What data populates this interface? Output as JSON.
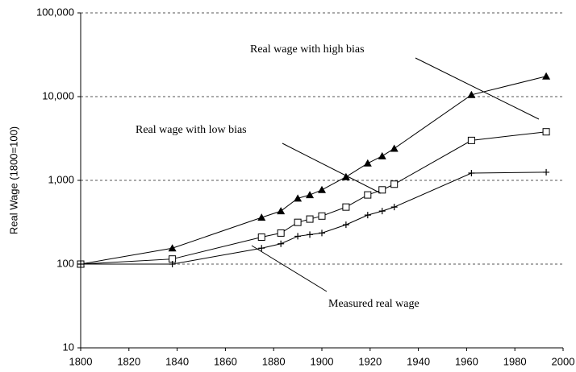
{
  "chart_data": {
    "type": "line",
    "y_label": "Real Wage (1800=100)",
    "log_y": true,
    "grid": true,
    "x": [
      1800,
      1838,
      1875,
      1883,
      1890,
      1895,
      1900,
      1910,
      1919,
      1925,
      1930,
      1962,
      1993
    ],
    "series": [
      {
        "name": "Real wage with high bias",
        "color": "#000000",
        "marker": "triangle",
        "values": [
          100,
          155,
          360,
          430,
          610,
          670,
          770,
          1100,
          1600,
          1950,
          2400,
          10500,
          17500
        ]
      },
      {
        "name": "Real wage with low bias",
        "color": "#000000",
        "marker": "square",
        "values": [
          100,
          115,
          210,
          235,
          315,
          345,
          375,
          480,
          670,
          770,
          900,
          3000,
          3800
        ]
      },
      {
        "name": "Measured real wage",
        "color": "#000000",
        "marker": "plus",
        "values": [
          100,
          100,
          155,
          175,
          215,
          225,
          235,
          295,
          385,
          430,
          480,
          1220,
          1250
        ]
      }
    ],
    "xlim": [
      1800,
      2000
    ],
    "xticks": [
      1800,
      1820,
      1840,
      1860,
      1880,
      1900,
      1920,
      1940,
      1960,
      1980,
      2000
    ],
    "ylim": [
      10,
      100000
    ],
    "yticks": [
      10,
      100,
      {
        "value": 1000,
        "label": "1,000"
      },
      {
        "value": 10000,
        "label": "10,000"
      },
      {
        "value": 100000,
        "label": "100,000"
      }
    ]
  }
}
